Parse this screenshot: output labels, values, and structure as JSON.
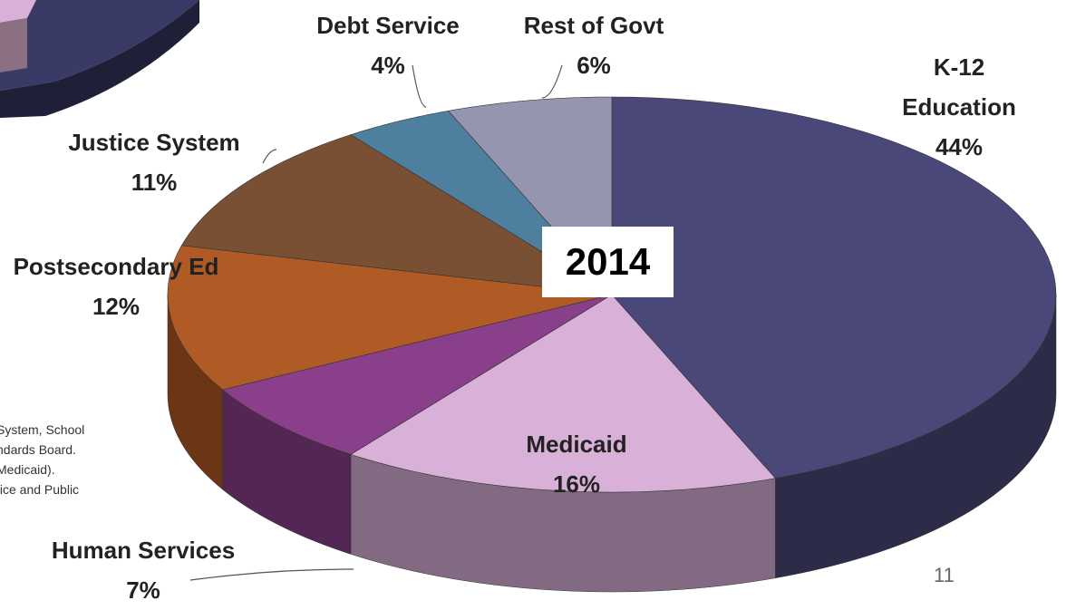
{
  "chart_data": {
    "type": "pie",
    "title": "2014",
    "categories": [
      "K-12 Education",
      "Medicaid",
      "Human Services",
      "Postsecondary Ed",
      "Justice System",
      "Debt Service",
      "Rest of Govt"
    ],
    "values": [
      44,
      16,
      7,
      12,
      11,
      4,
      6
    ],
    "value_labels": [
      "44%",
      "16%",
      "7%",
      "12%",
      "11%",
      "4%",
      "6%"
    ],
    "colors": [
      "#4a4878",
      "#d8b0d8",
      "#8a3f8a",
      "#b05a25",
      "#7a5035",
      "#4f7f9f",
      "#9595b0"
    ]
  },
  "notes": [
    "System, School",
    "ndards Board.",
    "Medicaid).",
    "tice and Public"
  ],
  "page_number": "11"
}
